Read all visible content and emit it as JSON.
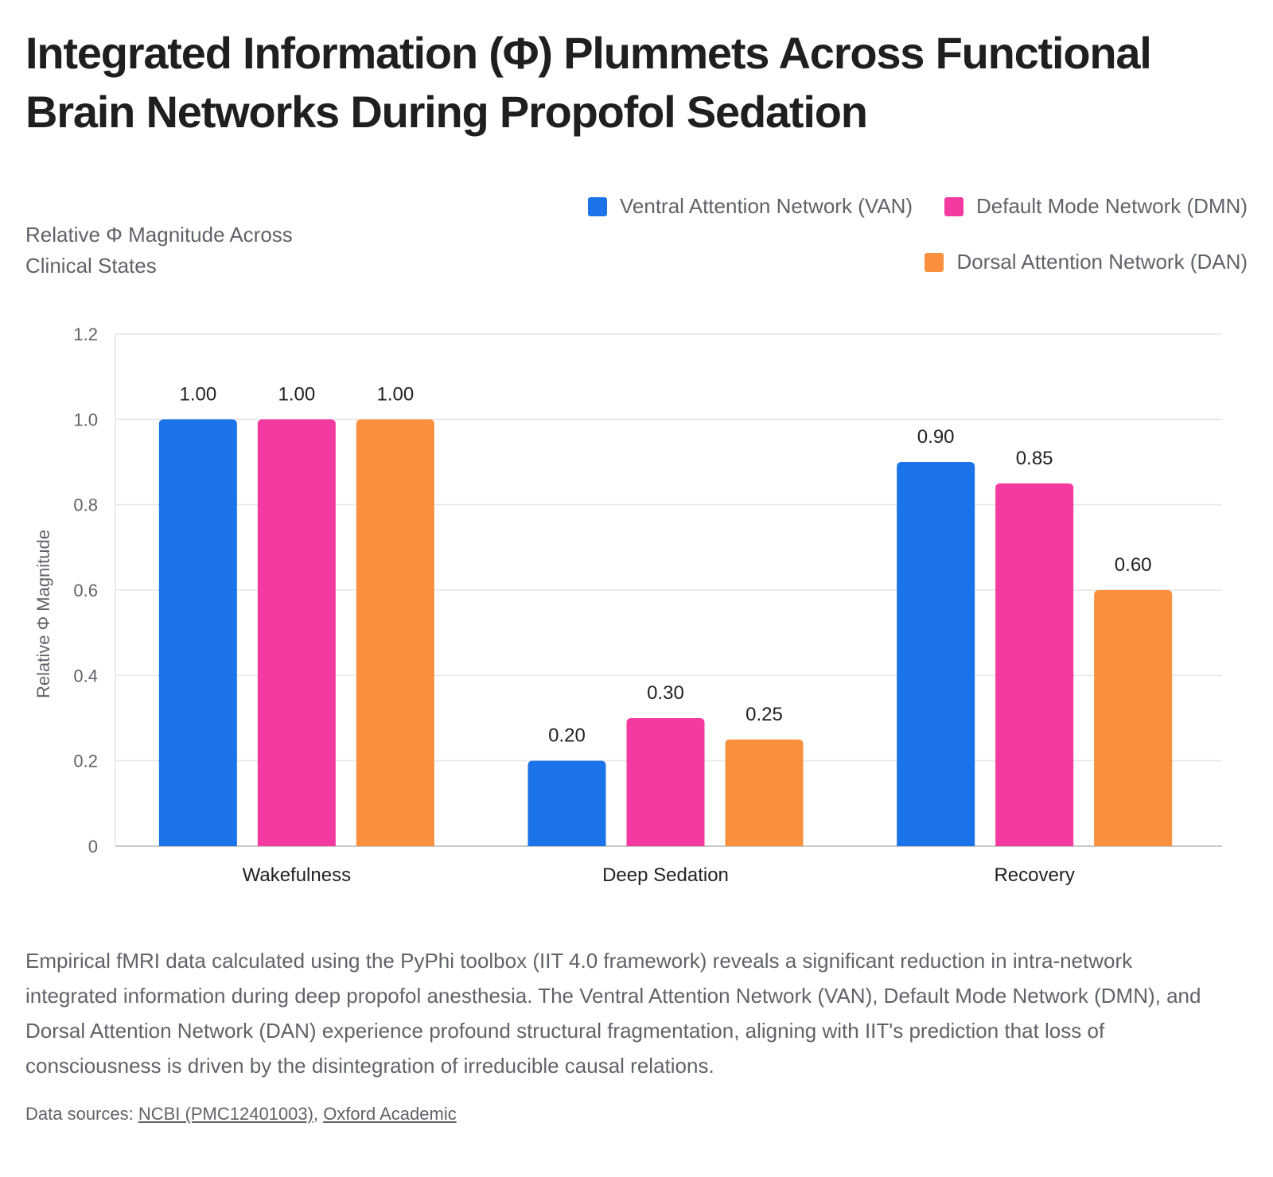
{
  "title": "Integrated Information (Φ) Plummets Across Functional Brain Networks During Propofol Sedation",
  "subtitle": "Relative Φ Magnitude Across Clinical States",
  "description": "Empirical fMRI data calculated using the PyPhi toolbox (IIT 4.0 framework) reveals a significant reduction in intra-network integrated information during deep propofol anesthesia. The Ventral Attention Network (VAN), Default Mode Network (DMN), and Dorsal Attention Network (DAN) experience profound structural fragmentation, aligning with IIT's prediction that loss of consciousness is driven by the disintegration of irreducible causal relations.",
  "sources": {
    "prefix": "Data sources: ",
    "links": [
      {
        "label": "NCBI (PMC12401003)"
      },
      {
        "label": "Oxford Academic"
      }
    ],
    "separator": ", "
  },
  "legend": [
    {
      "label": "Ventral Attention Network (VAN)",
      "color": "#1a73e8"
    },
    {
      "label": "Default Mode Network (DMN)",
      "color": "#f439a0"
    },
    {
      "label": "Dorsal Attention Network (DAN)",
      "color": "#fa903e"
    }
  ],
  "chart_data": {
    "type": "bar",
    "categories": [
      "Wakefulness",
      "Deep Sedation",
      "Recovery"
    ],
    "series": [
      {
        "name": "Ventral Attention Network (VAN)",
        "color": "#1a73e8",
        "values": [
          1.0,
          0.2,
          0.9
        ]
      },
      {
        "name": "Default Mode Network (DMN)",
        "color": "#f439a0",
        "values": [
          1.0,
          0.3,
          0.85
        ]
      },
      {
        "name": "Dorsal Attention Network (DAN)",
        "color": "#fa903e",
        "values": [
          1.0,
          0.25,
          0.6
        ]
      }
    ],
    "ylabel": "Relative Φ Magnitude",
    "xlabel": "",
    "ylim": [
      0,
      1.2
    ],
    "yticks": [
      0,
      0.2,
      0.4,
      0.6,
      0.8,
      1.0,
      1.2
    ],
    "ytick_labels": [
      "0",
      "0.2",
      "0.4",
      "0.6",
      "0.8",
      "1.0",
      "1.2"
    ],
    "value_labels": [
      [
        "1.00",
        "0.20",
        "0.90"
      ],
      [
        "1.00",
        "0.30",
        "0.85"
      ],
      [
        "1.00",
        "0.25",
        "0.60"
      ]
    ],
    "grid": true,
    "legend_position": "top-right"
  }
}
